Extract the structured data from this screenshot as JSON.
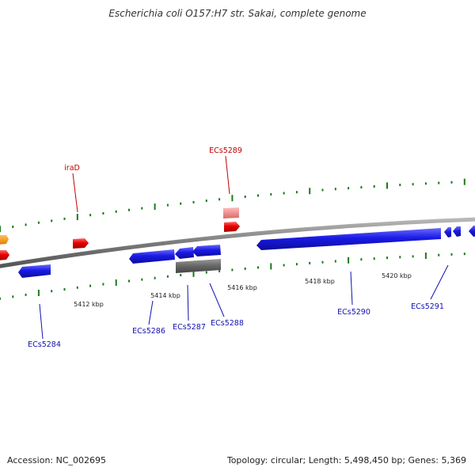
{
  "title": "Escherichia coli O157:H7 str. Sakai, complete genome",
  "footer": {
    "accession": "Accession: NC_002695",
    "summary": "Topology: circular; Length: 5,498,450 bp; Genes: 5,369"
  },
  "scale_labels": [
    "5412 kbp",
    "5414 kbp",
    "5416 kbp",
    "5418 kbp",
    "5420 kbp"
  ],
  "gene_labels": [
    {
      "name": "iraD",
      "strand": "forward"
    },
    {
      "name": "ECs5289",
      "strand": "forward"
    },
    {
      "name": "ECs5284",
      "strand": "reverse"
    },
    {
      "name": "ECs5286",
      "strand": "reverse"
    },
    {
      "name": "ECs5287",
      "strand": "reverse"
    },
    {
      "name": "ECs5288",
      "strand": "reverse"
    },
    {
      "name": "ECs5290",
      "strand": "reverse"
    },
    {
      "name": "ECs5291",
      "strand": "reverse"
    }
  ],
  "colors": {
    "forward_gene": "#e80000",
    "forward_gene_light": "#e88888",
    "forward_label": "#c00000",
    "reverse_gene": "#1a1ae6",
    "reverse_label": "#1010b0",
    "pseudo_gene": "#666666",
    "other_gene": "#f29400",
    "backbone": "#7a7a7a",
    "tick": "#1a7a1a"
  }
}
